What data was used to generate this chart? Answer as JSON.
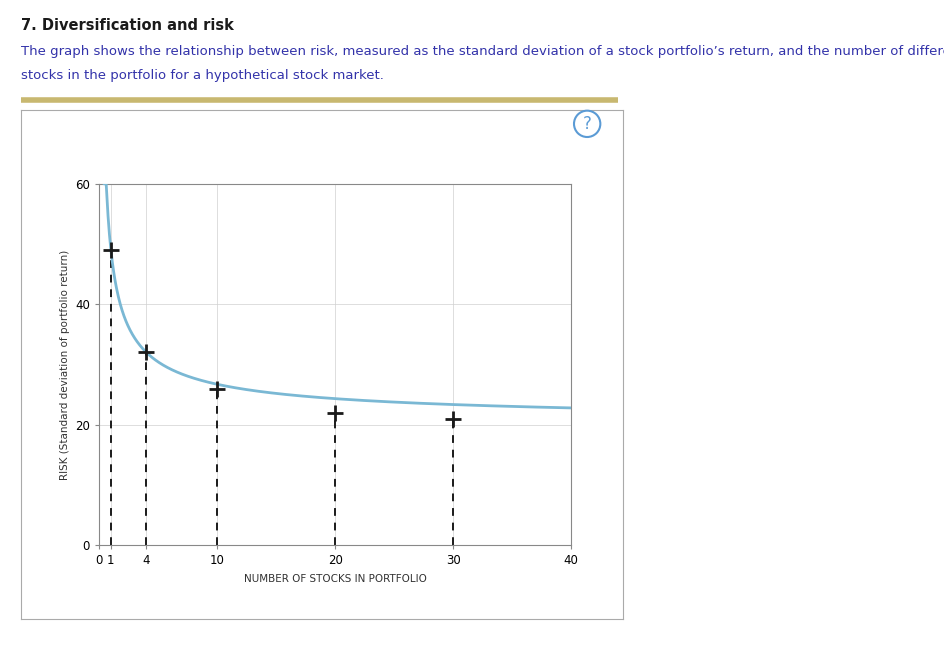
{
  "title": "7. Diversification and risk",
  "description_line1": "The graph shows the relationship between risk, measured as the standard deviation of a stock portfolio’s return, and the number of different",
  "description_line2": "stocks in the portfolio for a hypothetical stock market.",
  "xlabel": "NUMBER OF STOCKS IN PORTFOLIO",
  "ylabel": "RISK (Standard deviation of portfolio return)",
  "xlim": [
    0,
    40
  ],
  "ylim": [
    0,
    60
  ],
  "yticks": [
    0,
    20,
    40,
    60
  ],
  "xticks": [
    0,
    1,
    4,
    10,
    20,
    30,
    40
  ],
  "xtick_labels": [
    "0",
    "1",
    "4",
    "10",
    "20",
    "30",
    "40"
  ],
  "curve_color": "#7ab8d4",
  "curve_linewidth": 2.0,
  "marker_x": [
    1,
    4,
    10,
    20,
    30
  ],
  "marker_y": [
    49,
    32,
    26,
    22,
    21
  ],
  "asymptote": 20,
  "background_color": "#ffffff",
  "plot_bg_color": "#ffffff",
  "grid_color": "#d0d0d0",
  "dashed_line_color": "#1a1a1a",
  "marker_color": "#1a1a1a",
  "marker_size": 11,
  "marker_linewidth": 2.0,
  "title_fontsize": 10.5,
  "description_fontsize": 9.5,
  "axis_label_fontsize": 7.5,
  "tick_fontsize": 8.5,
  "title_color": "#1a1a1a",
  "description_color": "#3333aa",
  "separator_color": "#c8b870",
  "outer_box_color": "#aaaaaa"
}
